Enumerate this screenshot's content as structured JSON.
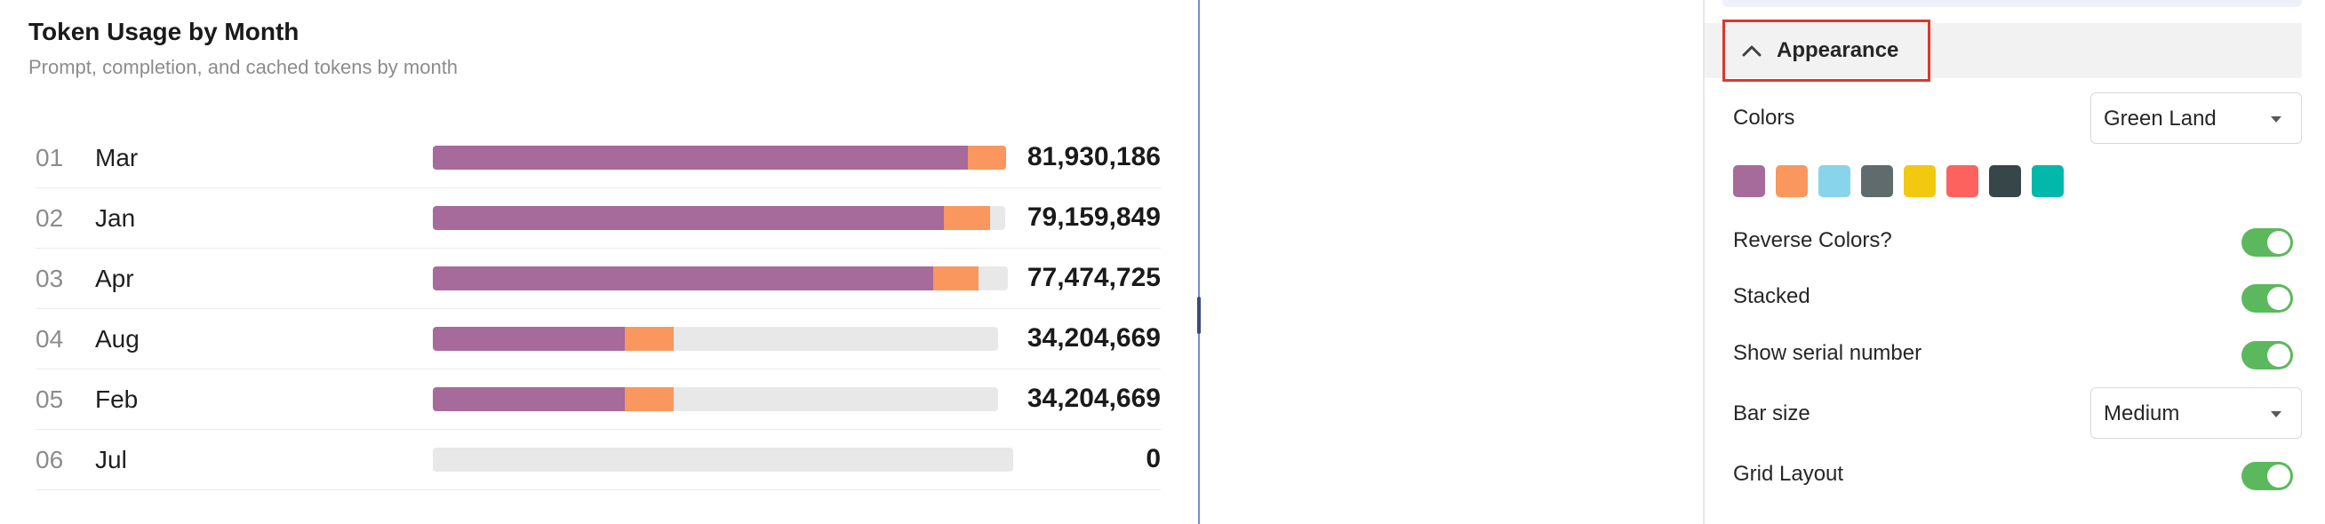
{
  "chart": {
    "title": "Token Usage by Month",
    "subtitle": "Prompt, completion, and cached tokens by month",
    "series_colors": [
      "#a66a9b",
      "#f9975e"
    ],
    "track_color": "#e8e8e8",
    "rows": [
      {
        "serial": "01",
        "label": "Mar",
        "value": "81,930,186"
      },
      {
        "serial": "02",
        "label": "Jan",
        "value": "79,159,849"
      },
      {
        "serial": "03",
        "label": "Apr",
        "value": "77,474,725"
      },
      {
        "serial": "04",
        "label": "Aug",
        "value": "34,204,669"
      },
      {
        "serial": "05",
        "label": "Feb",
        "value": "34,204,669"
      },
      {
        "serial": "06",
        "label": "Jul",
        "value": "0"
      }
    ]
  },
  "chart_data": {
    "type": "bar",
    "title": "Token Usage by Month",
    "subtitle": "Prompt, completion, and cached tokens by month",
    "orientation": "horizontal",
    "stacked": true,
    "categories": [
      "Mar",
      "Jan",
      "Apr",
      "Aug",
      "Feb",
      "Jul"
    ],
    "totals": [
      81930186,
      79159849,
      77474725,
      34204669,
      34204669,
      0
    ],
    "series": [
      {
        "values": [
          76000000,
          72500000,
          71000000,
          27200000,
          27200000,
          0
        ]
      },
      {
        "values": [
          5930186,
          6659849,
          6474725,
          7004669,
          7004669,
          0
        ]
      }
    ],
    "xlim": [
      0,
      82000000
    ],
    "legend": "none"
  },
  "settings": {
    "appearance_label": "Appearance",
    "colors_label": "Colors",
    "colors_value": "Green Land",
    "palette": [
      "#a66a9b",
      "#f9975e",
      "#88d4ea",
      "#5f6b6d",
      "#f2c811",
      "#fd625e",
      "#374649",
      "#01b8aa"
    ],
    "reverse_colors_label": "Reverse Colors?",
    "stacked_label": "Stacked",
    "show_serial_label": "Show serial number",
    "bar_size_label": "Bar size",
    "bar_size_value": "Medium",
    "grid_layout_label": "Grid Layout",
    "switch_color": "#5cb85c"
  }
}
